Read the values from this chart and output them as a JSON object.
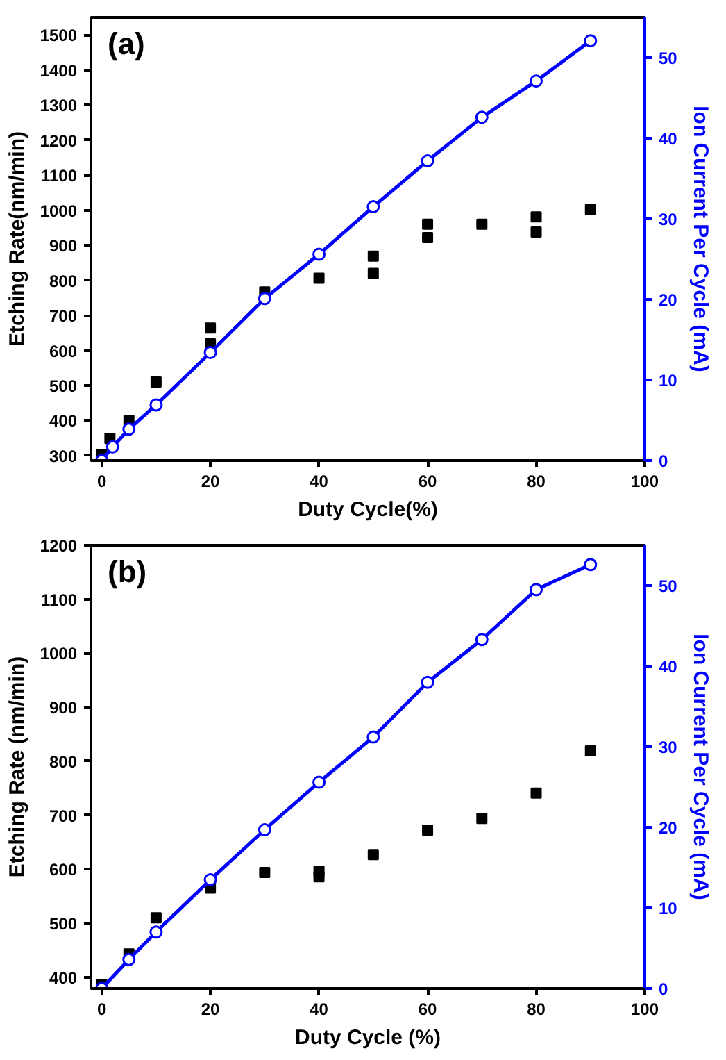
{
  "chart_data": [
    {
      "type": "scatter",
      "annotations": [
        "(a)"
      ],
      "xlabel": "Duty Cycle(%)",
      "ylabel": "Etching Rate(nm/min)",
      "y2label": "Ion Current Per Cycle (mA)",
      "xlim": [
        -2,
        100
      ],
      "xticks": [
        0,
        20,
        40,
        60,
        80,
        100
      ],
      "ylim": [
        286,
        1550
      ],
      "yticks": [
        300,
        400,
        500,
        600,
        700,
        800,
        900,
        1000,
        1100,
        1200,
        1300,
        1400,
        1500
      ],
      "y2lim": [
        0,
        55
      ],
      "y2ticks": [
        0,
        10,
        20,
        30,
        40,
        50
      ],
      "grid": false,
      "series": [
        {
          "marker": "square",
          "color": "#000000",
          "x": [
            0,
            1.5,
            5,
            10,
            20,
            20,
            30,
            40,
            50,
            50,
            60,
            60,
            70,
            80,
            80,
            90
          ],
          "values": [
            303,
            349,
            400,
            510,
            664,
            619,
            767,
            806,
            869,
            820,
            960,
            922,
            960,
            981,
            938,
            1002
          ]
        },
        {
          "type": "line",
          "marker": "circle",
          "line_style": "solid",
          "axis": "y2",
          "color": "#0000ff",
          "x": [
            0,
            2,
            5,
            10,
            20,
            30,
            40,
            50,
            60,
            70,
            80,
            90
          ],
          "values": [
            0,
            1.7,
            3.9,
            6.9,
            13.4,
            20.1,
            25.6,
            31.5,
            37.2,
            42.6,
            47.1,
            52.1
          ]
        }
      ]
    },
    {
      "type": "scatter",
      "annotations": [
        "(b)"
      ],
      "xlabel": "Duty Cycle (%)",
      "ylabel": "Etching Rate (nm/min)",
      "y2label": "Ion Current Per Cycle (mA)",
      "xlim": [
        -2,
        100
      ],
      "xticks": [
        0,
        20,
        40,
        60,
        80,
        100
      ],
      "ylim": [
        379,
        1200
      ],
      "yticks": [
        400,
        500,
        600,
        700,
        800,
        900,
        1000,
        1100,
        1200
      ],
      "y2lim": [
        0,
        55
      ],
      "y2ticks": [
        0,
        10,
        20,
        30,
        40,
        50
      ],
      "grid": false,
      "series": [
        {
          "marker": "square",
          "color": "#000000",
          "x": [
            0,
            5,
            10,
            20,
            30,
            40,
            40,
            50,
            60,
            70,
            80,
            90
          ],
          "values": [
            386,
            443,
            510,
            565,
            594,
            596,
            586,
            627,
            672,
            694,
            741,
            819
          ]
        },
        {
          "type": "line",
          "marker": "circle",
          "line_style": "solid",
          "axis": "y2",
          "color": "#0000ff",
          "x": [
            0,
            5,
            10,
            20,
            30,
            40,
            50,
            60,
            70,
            80,
            90
          ],
          "values": [
            0,
            3.6,
            7.0,
            13.5,
            19.7,
            25.6,
            31.2,
            38.0,
            43.3,
            49.5,
            52.6
          ]
        }
      ]
    }
  ]
}
